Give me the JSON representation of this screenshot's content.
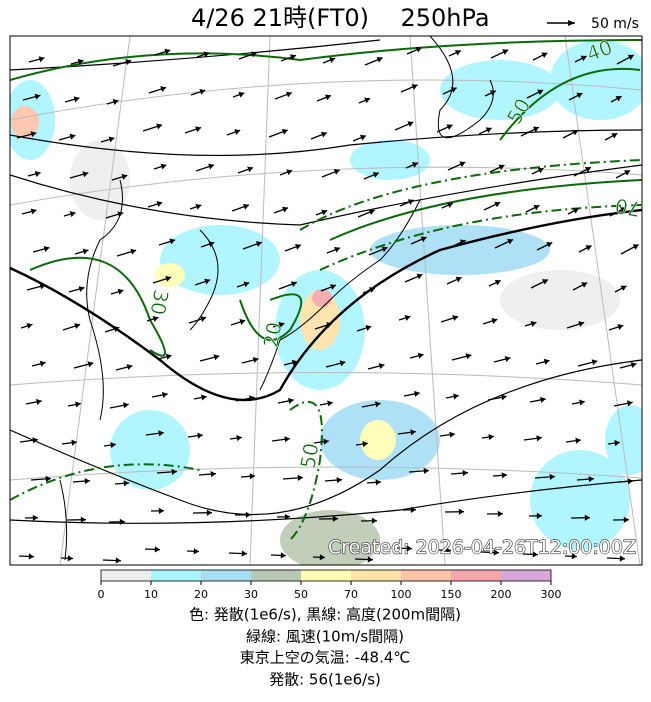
{
  "header": {
    "title": "4/26  21時(FT0)",
    "level": "250hPa",
    "wind_scale": "50 m/s"
  },
  "map": {
    "contour_labels": [
      "40",
      "50",
      "70",
      "30",
      "20",
      "50"
    ],
    "created": "Created: 2026-04-26T12:00:00Z"
  },
  "colorbar": {
    "ticks": [
      0,
      10,
      20,
      30,
      50,
      70,
      100,
      150,
      200,
      300
    ],
    "colors": [
      "#eeeeee",
      "#a8f4ff",
      "#a6def4",
      "#b9c9b3",
      "#ffffb4",
      "#ffe2a6",
      "#ffc3a8",
      "#f4a6aa",
      "#d9a6d9"
    ]
  },
  "caption": {
    "lines": [
      "色: 発散(1e6/s),  黒線: 高度(200m間隔)",
      "緑線: 風速(10m/s間隔)",
      "東京上空の気温: -48.4℃",
      "発散: 56(1e6/s)"
    ]
  }
}
